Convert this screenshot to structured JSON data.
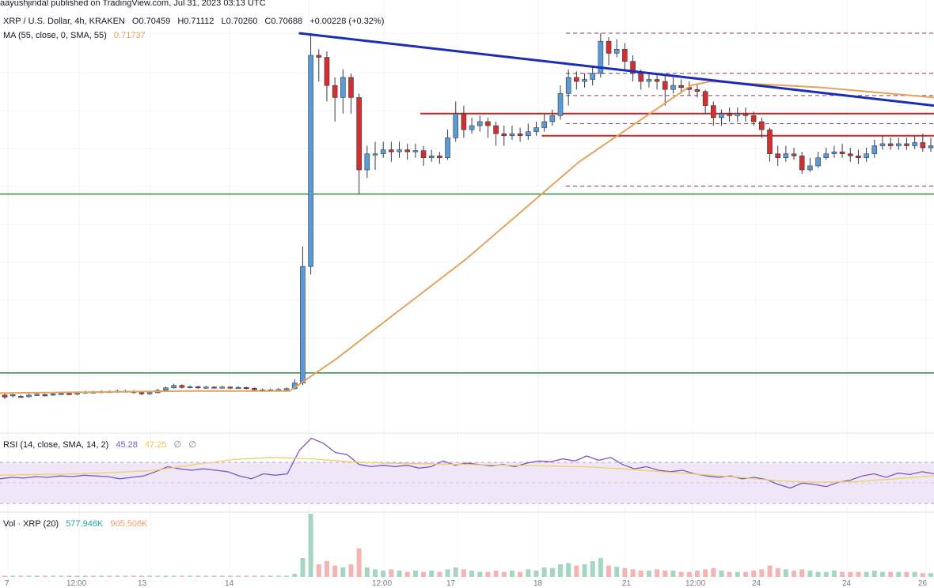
{
  "header": {
    "published": "aayushjindal published on TradingView.com, Jul 31, 2023 03:13 UTC",
    "symbol": "XRP / U.S. Dollar, 4h, KRAKEN",
    "ohlc": {
      "open": "O0.70459",
      "high": "H0.71112",
      "low": "L0.70260",
      "close": "C0.70688",
      "change": "+0.00228 (+0.32%)"
    },
    "ma": {
      "label": "MA (55, close, 0, SMA, 55)",
      "value": "0.71737"
    }
  },
  "rsi_header": {
    "label": "RSI (14, close, SMA, 14, 2)",
    "value1": "45.28",
    "value2": "47.25",
    "extra1": "∅",
    "extra2": "∅"
  },
  "vol_header": {
    "label": "Vol · XRP (20)",
    "value1": "577.946K",
    "value2": "905.506K"
  },
  "x_labels": [
    "7",
    "12:00",
    "13",
    "14",
    "12:00",
    "17",
    "18",
    "21",
    "12:00",
    "24",
    "24",
    "26"
  ],
  "colors": {
    "up": "#5b9bd5",
    "down": "#d32f2f",
    "trendline": "#1a2db8",
    "ma": "#e5a25c",
    "resistance": "#c62828",
    "support": "#2e8b3d",
    "rsi": "#7e57c2",
    "rsi_ma": "#f0d060",
    "vol_up": "#a5d6c1",
    "vol_down": "#f4b4b4"
  },
  "chart_data": [
    {
      "type": "candlestick",
      "title": "XRP / U.S. Dollar, 4h, KRAKEN",
      "note": "Chart shows no price scale; values are relative price levels (0 = bottom, 1 = top of the visible price area).",
      "candles": [
        [
          0.1,
          0.095,
          0.105,
          0.09
        ],
        [
          0.098,
          0.101,
          0.104,
          0.094
        ],
        [
          0.097,
          0.096,
          0.1,
          0.093
        ],
        [
          0.096,
          0.1,
          0.103,
          0.094
        ],
        [
          0.1,
          0.102,
          0.105,
          0.098
        ],
        [
          0.101,
          0.1,
          0.104,
          0.097
        ],
        [
          0.1,
          0.103,
          0.106,
          0.098
        ],
        [
          0.103,
          0.104,
          0.107,
          0.101
        ],
        [
          0.104,
          0.102,
          0.107,
          0.1
        ],
        [
          0.102,
          0.105,
          0.108,
          0.1
        ],
        [
          0.105,
          0.108,
          0.111,
          0.103
        ],
        [
          0.108,
          0.107,
          0.111,
          0.104
        ],
        [
          0.107,
          0.109,
          0.112,
          0.105
        ],
        [
          0.109,
          0.108,
          0.112,
          0.106
        ],
        [
          0.108,
          0.11,
          0.113,
          0.106
        ],
        [
          0.11,
          0.109,
          0.113,
          0.107
        ],
        [
          0.109,
          0.106,
          0.112,
          0.104
        ],
        [
          0.106,
          0.103,
          0.109,
          0.1
        ],
        [
          0.103,
          0.106,
          0.109,
          0.101
        ],
        [
          0.106,
          0.112,
          0.115,
          0.104
        ],
        [
          0.112,
          0.118,
          0.121,
          0.11
        ],
        [
          0.118,
          0.124,
          0.128,
          0.116
        ],
        [
          0.124,
          0.119,
          0.127,
          0.116
        ],
        [
          0.119,
          0.121,
          0.124,
          0.117
        ],
        [
          0.121,
          0.118,
          0.123,
          0.115
        ],
        [
          0.118,
          0.12,
          0.123,
          0.116
        ],
        [
          0.12,
          0.119,
          0.122,
          0.117
        ],
        [
          0.119,
          0.12,
          0.123,
          0.117
        ],
        [
          0.12,
          0.118,
          0.122,
          0.115
        ],
        [
          0.118,
          0.119,
          0.122,
          0.116
        ],
        [
          0.119,
          0.117,
          0.121,
          0.114
        ],
        [
          0.117,
          0.113,
          0.119,
          0.11
        ],
        [
          0.113,
          0.111,
          0.116,
          0.108
        ],
        [
          0.111,
          0.113,
          0.116,
          0.109
        ],
        [
          0.113,
          0.114,
          0.117,
          0.111
        ],
        [
          0.114,
          0.116,
          0.119,
          0.112
        ],
        [
          0.116,
          0.13,
          0.14,
          0.114
        ],
        [
          0.13,
          0.42,
          0.47,
          0.125
        ],
        [
          0.42,
          0.945,
          1.0,
          0.4
        ],
        [
          0.945,
          0.94,
          0.96,
          0.88
        ],
        [
          0.94,
          0.87,
          0.955,
          0.83
        ],
        [
          0.87,
          0.84,
          0.89,
          0.78
        ],
        [
          0.84,
          0.89,
          0.91,
          0.8
        ],
        [
          0.89,
          0.84,
          0.9,
          0.8
        ],
        [
          0.84,
          0.66,
          0.85,
          0.6
        ],
        [
          0.66,
          0.7,
          0.72,
          0.64
        ],
        [
          0.7,
          0.7,
          0.73,
          0.66
        ],
        [
          0.7,
          0.71,
          0.73,
          0.69
        ],
        [
          0.71,
          0.705,
          0.73,
          0.68
        ],
        [
          0.705,
          0.71,
          0.73,
          0.69
        ],
        [
          0.71,
          0.705,
          0.725,
          0.685
        ],
        [
          0.705,
          0.708,
          0.725,
          0.69
        ],
        [
          0.708,
          0.69,
          0.72,
          0.67
        ],
        [
          0.69,
          0.695,
          0.71,
          0.68
        ],
        [
          0.695,
          0.69,
          0.705,
          0.675
        ],
        [
          0.69,
          0.74,
          0.76,
          0.685
        ],
        [
          0.74,
          0.8,
          0.83,
          0.73
        ],
        [
          0.8,
          0.76,
          0.82,
          0.74
        ],
        [
          0.76,
          0.77,
          0.79,
          0.75
        ],
        [
          0.77,
          0.78,
          0.795,
          0.755
        ],
        [
          0.78,
          0.77,
          0.79,
          0.74
        ],
        [
          0.77,
          0.75,
          0.78,
          0.72
        ],
        [
          0.75,
          0.745,
          0.77,
          0.72
        ],
        [
          0.745,
          0.75,
          0.77,
          0.735
        ],
        [
          0.75,
          0.745,
          0.765,
          0.73
        ],
        [
          0.745,
          0.755,
          0.775,
          0.735
        ],
        [
          0.755,
          0.765,
          0.78,
          0.745
        ],
        [
          0.765,
          0.78,
          0.8,
          0.755
        ],
        [
          0.78,
          0.795,
          0.81,
          0.77
        ],
        [
          0.795,
          0.85,
          0.87,
          0.785
        ],
        [
          0.85,
          0.89,
          0.91,
          0.82
        ],
        [
          0.89,
          0.88,
          0.905,
          0.86
        ],
        [
          0.88,
          0.885,
          0.9,
          0.865
        ],
        [
          0.885,
          0.9,
          0.92,
          0.87
        ],
        [
          0.9,
          0.98,
          1.0,
          0.89
        ],
        [
          0.98,
          0.95,
          0.99,
          0.92
        ],
        [
          0.95,
          0.96,
          0.985,
          0.94
        ],
        [
          0.96,
          0.93,
          0.975,
          0.91
        ],
        [
          0.93,
          0.9,
          0.945,
          0.88
        ],
        [
          0.9,
          0.88,
          0.91,
          0.86
        ],
        [
          0.88,
          0.885,
          0.9,
          0.865
        ],
        [
          0.885,
          0.88,
          0.9,
          0.86
        ],
        [
          0.88,
          0.86,
          0.895,
          0.82
        ],
        [
          0.86,
          0.87,
          0.89,
          0.85
        ],
        [
          0.87,
          0.865,
          0.885,
          0.85
        ],
        [
          0.865,
          0.86,
          0.88,
          0.845
        ],
        [
          0.86,
          0.855,
          0.875,
          0.84
        ],
        [
          0.855,
          0.82,
          0.86,
          0.8
        ],
        [
          0.82,
          0.79,
          0.83,
          0.77
        ],
        [
          0.79,
          0.8,
          0.81,
          0.77
        ],
        [
          0.8,
          0.795,
          0.815,
          0.78
        ],
        [
          0.795,
          0.8,
          0.815,
          0.78
        ],
        [
          0.8,
          0.795,
          0.815,
          0.78
        ],
        [
          0.795,
          0.78,
          0.805,
          0.77
        ],
        [
          0.78,
          0.76,
          0.79,
          0.74
        ],
        [
          0.76,
          0.7,
          0.765,
          0.68
        ],
        [
          0.7,
          0.69,
          0.72,
          0.67
        ],
        [
          0.69,
          0.7,
          0.72,
          0.68
        ],
        [
          0.7,
          0.695,
          0.715,
          0.685
        ],
        [
          0.695,
          0.66,
          0.705,
          0.65
        ],
        [
          0.66,
          0.67,
          0.69,
          0.655
        ],
        [
          0.67,
          0.69,
          0.705,
          0.665
        ],
        [
          0.69,
          0.7,
          0.715,
          0.685
        ],
        [
          0.7,
          0.705,
          0.72,
          0.69
        ],
        [
          0.705,
          0.7,
          0.725,
          0.69
        ],
        [
          0.7,
          0.695,
          0.715,
          0.68
        ],
        [
          0.695,
          0.69,
          0.71,
          0.675
        ],
        [
          0.69,
          0.7,
          0.715,
          0.68
        ],
        [
          0.7,
          0.72,
          0.735,
          0.69
        ],
        [
          0.72,
          0.725,
          0.745,
          0.71
        ],
        [
          0.725,
          0.72,
          0.74,
          0.71
        ],
        [
          0.72,
          0.725,
          0.74,
          0.71
        ],
        [
          0.725,
          0.72,
          0.74,
          0.71
        ],
        [
          0.72,
          0.728,
          0.745,
          0.712
        ],
        [
          0.728,
          0.715,
          0.75,
          0.705
        ],
        [
          0.715,
          0.72,
          0.74,
          0.705
        ]
      ]
    },
    {
      "type": "line",
      "name": "MA (55, close, 0, SMA, 55)",
      "x": [
        0.0,
        0.2,
        0.31,
        0.36,
        0.5,
        0.62,
        0.74,
        0.76,
        0.88,
        1.0
      ],
      "y": [
        0.105,
        0.11,
        0.11,
        0.19,
        0.44,
        0.68,
        0.87,
        0.88,
        0.865,
        0.84
      ]
    },
    {
      "type": "line",
      "name": "RSI (14, close, SMA, 14, 2)",
      "y": [
        0.38,
        0.4,
        0.39,
        0.41,
        0.4,
        0.42,
        0.41,
        0.43,
        0.42,
        0.41,
        0.38,
        0.4,
        0.42,
        0.48,
        0.55,
        0.52,
        0.5,
        0.52,
        0.5,
        0.48,
        0.42,
        0.38,
        0.45,
        0.43,
        0.45,
        0.78,
        0.95,
        0.88,
        0.75,
        0.72,
        0.58,
        0.55,
        0.57,
        0.55,
        0.57,
        0.53,
        0.55,
        0.63,
        0.57,
        0.6,
        0.58,
        0.56,
        0.58,
        0.55,
        0.6,
        0.63,
        0.62,
        0.66,
        0.63,
        0.7,
        0.64,
        0.68,
        0.58,
        0.52,
        0.55,
        0.5,
        0.48,
        0.5,
        0.45,
        0.42,
        0.4,
        0.42,
        0.38,
        0.4,
        0.37,
        0.3,
        0.25,
        0.32,
        0.3,
        0.27,
        0.33,
        0.36,
        0.42,
        0.45,
        0.4,
        0.46,
        0.44,
        0.48,
        0.45
      ]
    },
    {
      "type": "line",
      "name": "RSI MA",
      "y": [
        0.43,
        0.44,
        0.45,
        0.47,
        0.5,
        0.58,
        0.65,
        0.68,
        0.66,
        0.62,
        0.6,
        0.59,
        0.58,
        0.57,
        0.56,
        0.55,
        0.52,
        0.48,
        0.44,
        0.4,
        0.35,
        0.33,
        0.34,
        0.38,
        0.42
      ]
    },
    {
      "type": "bar",
      "name": "Vol · XRP (20)",
      "values": [
        0.02,
        0.02,
        0.02,
        0.02,
        0.02,
        0.02,
        0.02,
        0.02,
        0.02,
        0.02,
        0.02,
        0.02,
        0.02,
        0.02,
        0.02,
        0.02,
        0.02,
        0.02,
        0.02,
        0.02,
        0.02,
        0.02,
        0.02,
        0.02,
        0.02,
        0.02,
        0.02,
        0.02,
        0.02,
        0.02,
        0.02,
        0.02,
        0.02,
        0.02,
        0.02,
        0.02,
        0.05,
        0.3,
        1.0,
        0.2,
        0.25,
        0.18,
        0.15,
        0.2,
        0.45,
        0.15,
        0.12,
        0.1,
        0.12,
        0.1,
        0.08,
        0.1,
        0.08,
        0.1,
        0.08,
        0.12,
        0.15,
        0.12,
        0.1,
        0.08,
        0.08,
        0.1,
        0.08,
        0.1,
        0.08,
        0.12,
        0.1,
        0.15,
        0.14,
        0.2,
        0.22,
        0.18,
        0.2,
        0.25,
        0.3,
        0.18,
        0.16,
        0.14,
        0.12,
        0.1,
        0.1,
        0.12,
        0.1,
        0.1,
        0.08,
        0.08,
        0.1,
        0.12,
        0.14,
        0.1,
        0.08,
        0.08,
        0.08,
        0.1,
        0.12,
        0.18,
        0.14,
        0.12,
        0.1,
        0.12,
        0.1,
        0.08,
        0.08,
        0.1,
        0.08,
        0.08,
        0.08,
        0.08,
        0.1,
        0.08,
        0.08,
        0.08,
        0.08,
        0.08,
        0.06,
        0.06
      ]
    }
  ],
  "annotations": {
    "trendline": {
      "x": [
        0.32,
        1.0
      ],
      "y": [
        1.0,
        0.82
      ]
    },
    "resistance_levels": [
      {
        "y": 0.8,
        "x": [
          0.45,
          1.0
        ]
      },
      {
        "y": 0.745,
        "x": [
          0.58,
          1.0
        ]
      }
    ],
    "support_levels": [
      0.6,
      0.155
    ],
    "dashed_levels": [
      1.0,
      0.9,
      0.845,
      0.775,
      0.62,
      0.6
    ]
  }
}
